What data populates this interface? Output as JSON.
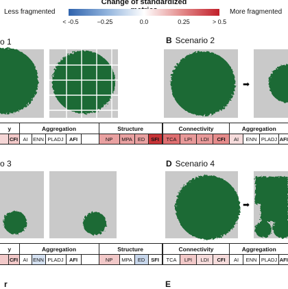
{
  "legend": {
    "title": "Change of standardized metrics",
    "left_label": "Less fragmented",
    "right_label": "More fragmented",
    "ticks": [
      "< -0.5",
      "−0.25",
      "0.0",
      "0.25",
      "> 0.5"
    ],
    "low_color": "#2f63ad",
    "high_color": "#c11f2a"
  },
  "panels": [
    {
      "letter": "",
      "title": "o 1"
    },
    {
      "letter": "B",
      "title": "Scenario 2"
    },
    {
      "letter": "",
      "title": "o 3"
    },
    {
      "letter": "D",
      "title": "Scenario 4"
    }
  ],
  "tables": {
    "t1": {
      "groups": [
        "y",
        "Aggregation",
        "Structure"
      ],
      "metrics": [
        "CFI",
        "AI",
        "ENN",
        "PLADJ",
        "AFI",
        "NP",
        "MPA",
        "ED",
        "SFI"
      ]
    },
    "t2": {
      "groups": [
        "Connectivity",
        "Aggregation"
      ],
      "metrics": [
        "TCA",
        "LPI",
        "LDI",
        "CFI",
        "AI",
        "ENN",
        "PLADJ",
        "AFI"
      ]
    },
    "t3": {
      "groups": [
        "y",
        "Aggregation",
        "Structure"
      ],
      "metrics": [
        "CFI",
        "AI",
        "ENN",
        "PLADJ",
        "AFI",
        "NP",
        "MPA",
        "ED",
        "SFI"
      ]
    },
    "t4": {
      "groups": [
        "Connectivity",
        "Aggregation"
      ],
      "metrics": [
        "TCA",
        "LPI",
        "LDI",
        "CFI",
        "AI",
        "ENN",
        "PLADJ",
        "AFI"
      ]
    }
  },
  "bottom": {
    "left": "r",
    "right": "E"
  },
  "colors": {
    "forest": "#1b6b36",
    "background": "#c9c9c9",
    "grid": "#ffffff"
  }
}
